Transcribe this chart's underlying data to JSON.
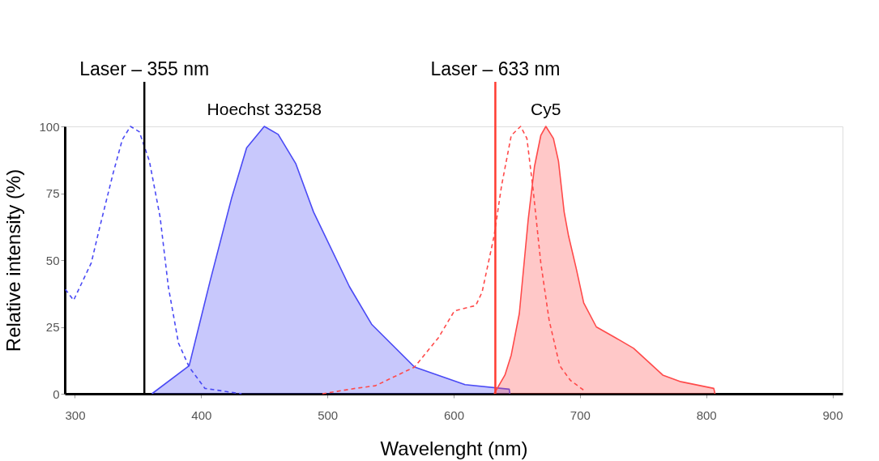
{
  "chart_data": {
    "type": "line",
    "xlabel": "Wavelenght (nm)",
    "ylabel": "Relative intensity (%)",
    "xlim": [
      292,
      908
    ],
    "xticks": [
      300,
      400,
      500,
      600,
      700,
      800,
      900
    ],
    "ylim": [
      0,
      100
    ],
    "yticks": [
      0,
      25,
      50,
      75,
      100
    ],
    "grid": false,
    "series": [
      {
        "type": "line",
        "line_style": "dashed",
        "color": "#4a4af5",
        "x": [
          292.5,
          299,
          313,
          319,
          330,
          337.5,
          344,
          351,
          359,
          367.5,
          374,
          382,
          390.5,
          403,
          432
        ],
        "values": [
          39,
          35,
          49,
          61,
          82,
          95,
          100,
          98,
          87,
          66,
          40,
          19,
          10,
          2,
          0
        ]
      },
      {
        "type": "area",
        "color": "#4a4af5",
        "x": [
          361,
          390.5,
          407,
          424,
          436,
          450,
          461,
          475,
          489,
          517.5,
          535,
          569,
          609,
          644,
          644.5
        ],
        "values": [
          0,
          10.5,
          42,
          73,
          92,
          100,
          97,
          86,
          68,
          40,
          26,
          10,
          3.4,
          1.7,
          0
        ]
      },
      {
        "type": "line",
        "line_style": "dashed",
        "color": "#ff4a4a",
        "x": [
          496,
          522,
          538,
          569,
          588,
          600.6,
          617.5,
          622.5,
          632,
          638,
          645.6,
          653,
          658,
          663,
          669,
          675.6,
          684,
          692.5,
          704
        ],
        "values": [
          0,
          2,
          3,
          10,
          21,
          31,
          33,
          38,
          59,
          78,
          96.6,
          100,
          95.5,
          76,
          49,
          27.5,
          10.5,
          5,
          1
        ]
      },
      {
        "type": "area",
        "color": "#ff4a4a",
        "x": [
          632,
          640.6,
          645.6,
          652,
          659,
          664,
          669,
          673,
          679,
          683,
          687.5,
          691,
          697,
          703,
          713,
          728,
          742.5,
          765.6,
          780,
          806,
          807
        ],
        "values": [
          0,
          7,
          14.5,
          30,
          65,
          85,
          96.6,
          100,
          95.5,
          87,
          68,
          59,
          47,
          34,
          25,
          21,
          17,
          7,
          4.5,
          2,
          0
        ]
      }
    ],
    "ref_lines": [
      {
        "axis": "x",
        "value": 355,
        "label": "Laser – 355 nm",
        "color": "#000000"
      },
      {
        "axis": "x",
        "value": 633,
        "label": "Laser – 633 nm",
        "color": "#ff3b30"
      }
    ],
    "annotations": [
      {
        "text": "Hoechst 33258",
        "x": 450,
        "y": 100
      },
      {
        "text": "Cy5",
        "x": 673,
        "y": 100
      }
    ]
  }
}
